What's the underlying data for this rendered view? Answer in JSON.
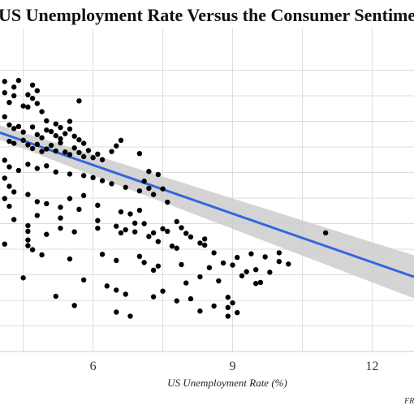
{
  "chart_data": {
    "type": "scatter",
    "title": "US Unemployment Rate Versus the Consumer Sentiment Index",
    "xlabel": "US Unemployment Rate (%)",
    "ylabel": "",
    "source": "FRED",
    "xlim": [
      4.0,
      12.9
    ],
    "ylim": [
      45,
      105
    ],
    "x_ticks": [
      6,
      9,
      12
    ],
    "grid": true,
    "colors": {
      "points": "#000000",
      "trend": "#3366dd",
      "band": "#cccccc",
      "grid": "#dddddd"
    },
    "trend": {
      "x": [
        4.0,
        12.9
      ],
      "y": [
        87.8,
        59.6
      ],
      "band_halfwidth": [
        1.4,
        4.2
      ]
    },
    "points": [
      [
        4.1,
        97.8
      ],
      [
        4.1,
        95.6
      ],
      [
        4.2,
        93.7
      ],
      [
        4.3,
        96.7
      ],
      [
        4.3,
        95.0
      ],
      [
        4.4,
        98.0
      ],
      [
        4.5,
        93.0
      ],
      [
        4.6,
        95.2
      ],
      [
        4.6,
        92.8
      ],
      [
        4.7,
        97.1
      ],
      [
        4.7,
        94.5
      ],
      [
        4.8,
        96.0
      ],
      [
        4.8,
        93.5
      ],
      [
        5.7,
        94.0
      ],
      [
        4.9,
        91.9
      ],
      [
        5.0,
        90.1
      ],
      [
        5.2,
        89.5
      ],
      [
        5.3,
        88.8
      ],
      [
        5.5,
        90.0
      ],
      [
        4.1,
        90.9
      ],
      [
        4.2,
        89.3
      ],
      [
        4.3,
        88.6
      ],
      [
        4.4,
        89.0
      ],
      [
        4.5,
        87.9
      ],
      [
        4.7,
        88.9
      ],
      [
        4.8,
        87.4
      ],
      [
        4.9,
        86.8
      ],
      [
        5.0,
        88.3
      ],
      [
        5.1,
        88.0
      ],
      [
        5.2,
        87.2
      ],
      [
        5.3,
        86.6
      ],
      [
        5.4,
        87.6
      ],
      [
        5.5,
        88.5
      ],
      [
        5.6,
        87.1
      ],
      [
        5.7,
        86.4
      ],
      [
        5.8,
        85.7
      ],
      [
        4.2,
        86.1
      ],
      [
        4.3,
        85.7
      ],
      [
        4.5,
        86.3
      ],
      [
        4.6,
        85.4
      ],
      [
        4.7,
        84.7
      ],
      [
        4.8,
        85.5
      ],
      [
        4.9,
        84.1
      ],
      [
        5.0,
        84.6
      ],
      [
        5.1,
        85.3
      ],
      [
        5.2,
        84.2
      ],
      [
        5.3,
        85.8
      ],
      [
        5.4,
        84.0
      ],
      [
        5.5,
        83.5
      ],
      [
        5.6,
        84.8
      ],
      [
        5.7,
        83.9
      ],
      [
        5.8,
        83.1
      ],
      [
        5.9,
        84.3
      ],
      [
        6.0,
        82.9
      ],
      [
        6.1,
        83.6
      ],
      [
        6.2,
        82.5
      ],
      [
        6.4,
        84.1
      ],
      [
        6.5,
        85.2
      ],
      [
        6.6,
        86.3
      ],
      [
        7.0,
        83.7
      ],
      [
        7.2,
        80.2
      ],
      [
        4.1,
        82.4
      ],
      [
        4.2,
        81.1
      ],
      [
        4.4,
        80.4
      ],
      [
        4.6,
        81.6
      ],
      [
        4.8,
        80.8
      ],
      [
        5.0,
        81.3
      ],
      [
        5.2,
        80.1
      ],
      [
        5.5,
        79.7
      ],
      [
        5.8,
        79.4
      ],
      [
        6.0,
        79.0
      ],
      [
        6.2,
        78.4
      ],
      [
        6.4,
        77.8
      ],
      [
        6.7,
        77.1
      ],
      [
        7.0,
        76.4
      ],
      [
        7.3,
        75.7
      ],
      [
        7.4,
        79.6
      ],
      [
        7.1,
        78.3
      ],
      [
        7.2,
        76.9
      ],
      [
        4.1,
        78.9
      ],
      [
        4.2,
        77.3
      ],
      [
        4.3,
        76.2
      ],
      [
        4.6,
        75.7
      ],
      [
        4.8,
        74.3
      ],
      [
        5.0,
        73.9
      ],
      [
        5.3,
        73.2
      ],
      [
        5.5,
        74.9
      ],
      [
        5.7,
        72.8
      ],
      [
        5.8,
        75.5
      ],
      [
        6.1,
        73.6
      ],
      [
        6.6,
        72.3
      ],
      [
        6.8,
        71.9
      ],
      [
        7.0,
        72.6
      ],
      [
        7.5,
        76.8
      ],
      [
        7.6,
        74.2
      ],
      [
        4.1,
        74.9
      ],
      [
        4.2,
        73.4
      ],
      [
        4.8,
        71.6
      ],
      [
        5.3,
        71.1
      ],
      [
        6.1,
        70.6
      ],
      [
        6.5,
        69.5
      ],
      [
        6.7,
        68.8
      ],
      [
        6.9,
        68.4
      ],
      [
        7.1,
        70.0
      ],
      [
        7.3,
        68.2
      ],
      [
        7.5,
        69.0
      ],
      [
        7.6,
        68.5
      ],
      [
        7.8,
        70.4
      ],
      [
        7.9,
        69.2
      ],
      [
        8.0,
        68.1
      ],
      [
        8.1,
        67.4
      ],
      [
        8.3,
        66.2
      ],
      [
        8.4,
        65.8
      ],
      [
        8.6,
        64.3
      ],
      [
        8.4,
        67.0
      ],
      [
        4.3,
        70.8
      ],
      [
        4.6,
        69.6
      ],
      [
        4.6,
        68.5
      ],
      [
        5.0,
        67.9
      ],
      [
        5.3,
        69.1
      ],
      [
        5.6,
        68.4
      ],
      [
        6.1,
        69.1
      ],
      [
        6.6,
        68.2
      ],
      [
        6.9,
        70.1
      ],
      [
        7.2,
        67.5
      ],
      [
        7.4,
        66.5
      ],
      [
        7.7,
        65.6
      ],
      [
        7.8,
        65.2
      ],
      [
        4.1,
        66.0
      ],
      [
        4.6,
        66.8
      ],
      [
        4.6,
        65.7
      ],
      [
        4.7,
        64.9
      ],
      [
        4.9,
        63.9
      ],
      [
        5.5,
        63.1
      ],
      [
        6.2,
        64.0
      ],
      [
        6.5,
        62.8
      ],
      [
        7.0,
        63.6
      ],
      [
        7.1,
        62.4
      ],
      [
        7.4,
        61.7
      ],
      [
        7.3,
        60.9
      ],
      [
        7.9,
        62.0
      ],
      [
        8.5,
        61.4
      ],
      [
        8.8,
        62.3
      ],
      [
        9.1,
        63.4
      ],
      [
        9.4,
        64.1
      ],
      [
        9.7,
        63.5
      ],
      [
        8.7,
        58.8
      ],
      [
        9.0,
        61.9
      ],
      [
        9.2,
        59.8
      ],
      [
        9.3,
        60.6
      ],
      [
        9.5,
        61.0
      ],
      [
        9.8,
        60.5
      ],
      [
        10.0,
        62.6
      ],
      [
        10.2,
        62.1
      ],
      [
        9.6,
        58.5
      ],
      [
        9.5,
        58.3
      ],
      [
        10.0,
        64.3
      ],
      [
        11.0,
        68.2
      ],
      [
        4.5,
        59.4
      ],
      [
        5.8,
        59.0
      ],
      [
        6.3,
        57.8
      ],
      [
        6.5,
        57.0
      ],
      [
        6.7,
        56.2
      ],
      [
        7.5,
        56.8
      ],
      [
        8.1,
        55.3
      ],
      [
        8.6,
        53.9
      ],
      [
        8.9,
        53.6
      ],
      [
        9.0,
        54.5
      ],
      [
        8.0,
        58.4
      ],
      [
        8.3,
        59.6
      ],
      [
        5.2,
        55.8
      ],
      [
        5.6,
        54.0
      ],
      [
        6.5,
        52.7
      ],
      [
        6.8,
        51.9
      ],
      [
        7.3,
        55.7
      ],
      [
        7.8,
        54.9
      ],
      [
        8.3,
        52.9
      ],
      [
        8.9,
        51.9
      ],
      [
        9.1,
        52.6
      ],
      [
        8.9,
        55.6
      ]
    ]
  }
}
